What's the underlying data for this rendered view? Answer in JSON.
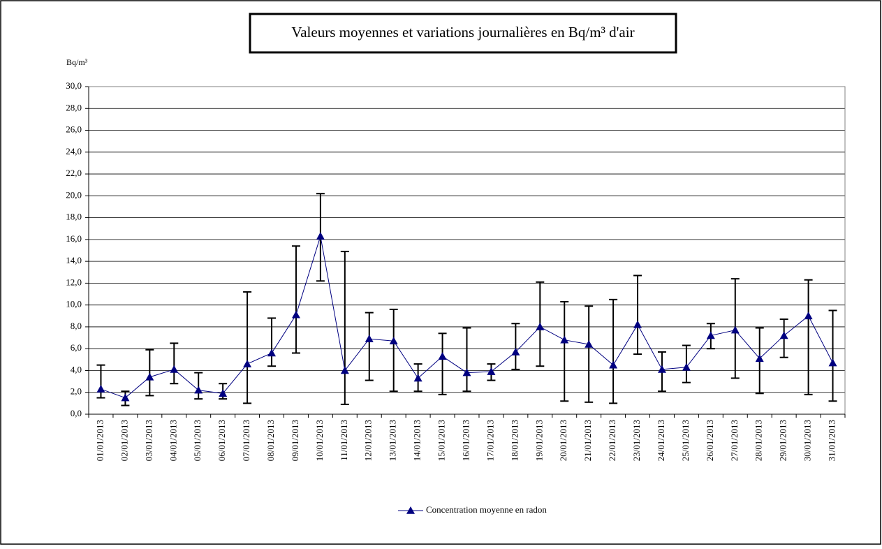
{
  "chart_data": {
    "type": "line",
    "title": "Valeurs moyennes et variations journalières en Bq/m³ d'air",
    "y_label": "Bq/m³",
    "categories": [
      "01/01/2013",
      "02/01/2013",
      "03/01/2013",
      "04/01/2013",
      "05/01/2013",
      "06/01/2013",
      "07/01/2013",
      "08/01/2013",
      "09/01/2013",
      "10/01/2013",
      "11/01/2013",
      "12/01/2013",
      "13/01/2013",
      "14/01/2013",
      "15/01/2013",
      "16/01/2013",
      "17/01/2013",
      "18/01/2013",
      "19/01/2013",
      "20/01/2013",
      "21/01/2013",
      "22/01/2013",
      "23/01/2013",
      "24/01/2013",
      "25/01/2013",
      "26/01/2013",
      "27/01/2013",
      "28/01/2013",
      "29/01/2013",
      "30/01/2013",
      "31/01/2013"
    ],
    "series": [
      {
        "name": "Concentration moyenne en radon",
        "color": "#000080",
        "values": [
          2.3,
          1.5,
          3.4,
          4.1,
          2.2,
          1.9,
          4.6,
          5.6,
          9.1,
          16.3,
          4.0,
          6.9,
          6.7,
          3.3,
          5.3,
          3.8,
          3.9,
          5.7,
          8.0,
          6.8,
          6.4,
          4.5,
          8.2,
          4.1,
          4.3,
          7.2,
          7.7,
          5.1,
          7.2,
          9.0,
          4.7
        ],
        "error_low": [
          1.5,
          0.8,
          1.7,
          2.8,
          1.4,
          1.4,
          1.0,
          4.4,
          5.6,
          12.2,
          0.9,
          3.1,
          2.1,
          2.1,
          1.8,
          2.1,
          3.1,
          4.1,
          4.4,
          1.2,
          1.1,
          1.0,
          5.5,
          2.1,
          2.9,
          6.0,
          3.3,
          1.9,
          5.2,
          1.8,
          1.2
        ],
        "error_high": [
          4.5,
          2.1,
          5.9,
          6.5,
          3.8,
          2.8,
          11.2,
          8.8,
          15.4,
          20.2,
          14.9,
          9.3,
          9.6,
          4.6,
          7.4,
          7.9,
          4.6,
          8.3,
          12.1,
          10.3,
          9.9,
          10.5,
          12.7,
          5.7,
          6.3,
          8.3,
          12.4,
          7.9,
          8.7,
          12.3,
          9.5
        ]
      }
    ],
    "error_color": "#000000",
    "ylim": [
      0,
      30
    ],
    "yticks": [
      {
        "value": 0,
        "label": "0,0"
      },
      {
        "value": 2,
        "label": "2,0"
      },
      {
        "value": 4,
        "label": "4,0"
      },
      {
        "value": 6,
        "label": "6,0"
      },
      {
        "value": 8,
        "label": "8,0"
      },
      {
        "value": 10,
        "label": "10,0"
      },
      {
        "value": 12,
        "label": "12,0"
      },
      {
        "value": 14,
        "label": "14,0"
      },
      {
        "value": 16,
        "label": "16,0"
      },
      {
        "value": 18,
        "label": "18,0"
      },
      {
        "value": 20,
        "label": "20,0"
      },
      {
        "value": 22,
        "label": "22,0"
      },
      {
        "value": 24,
        "label": "24,0"
      },
      {
        "value": 26,
        "label": "26,0"
      },
      {
        "value": 28,
        "label": "28,0"
      },
      {
        "value": 30,
        "label": "30,0"
      }
    ],
    "grid": true,
    "legend": "bottom"
  }
}
